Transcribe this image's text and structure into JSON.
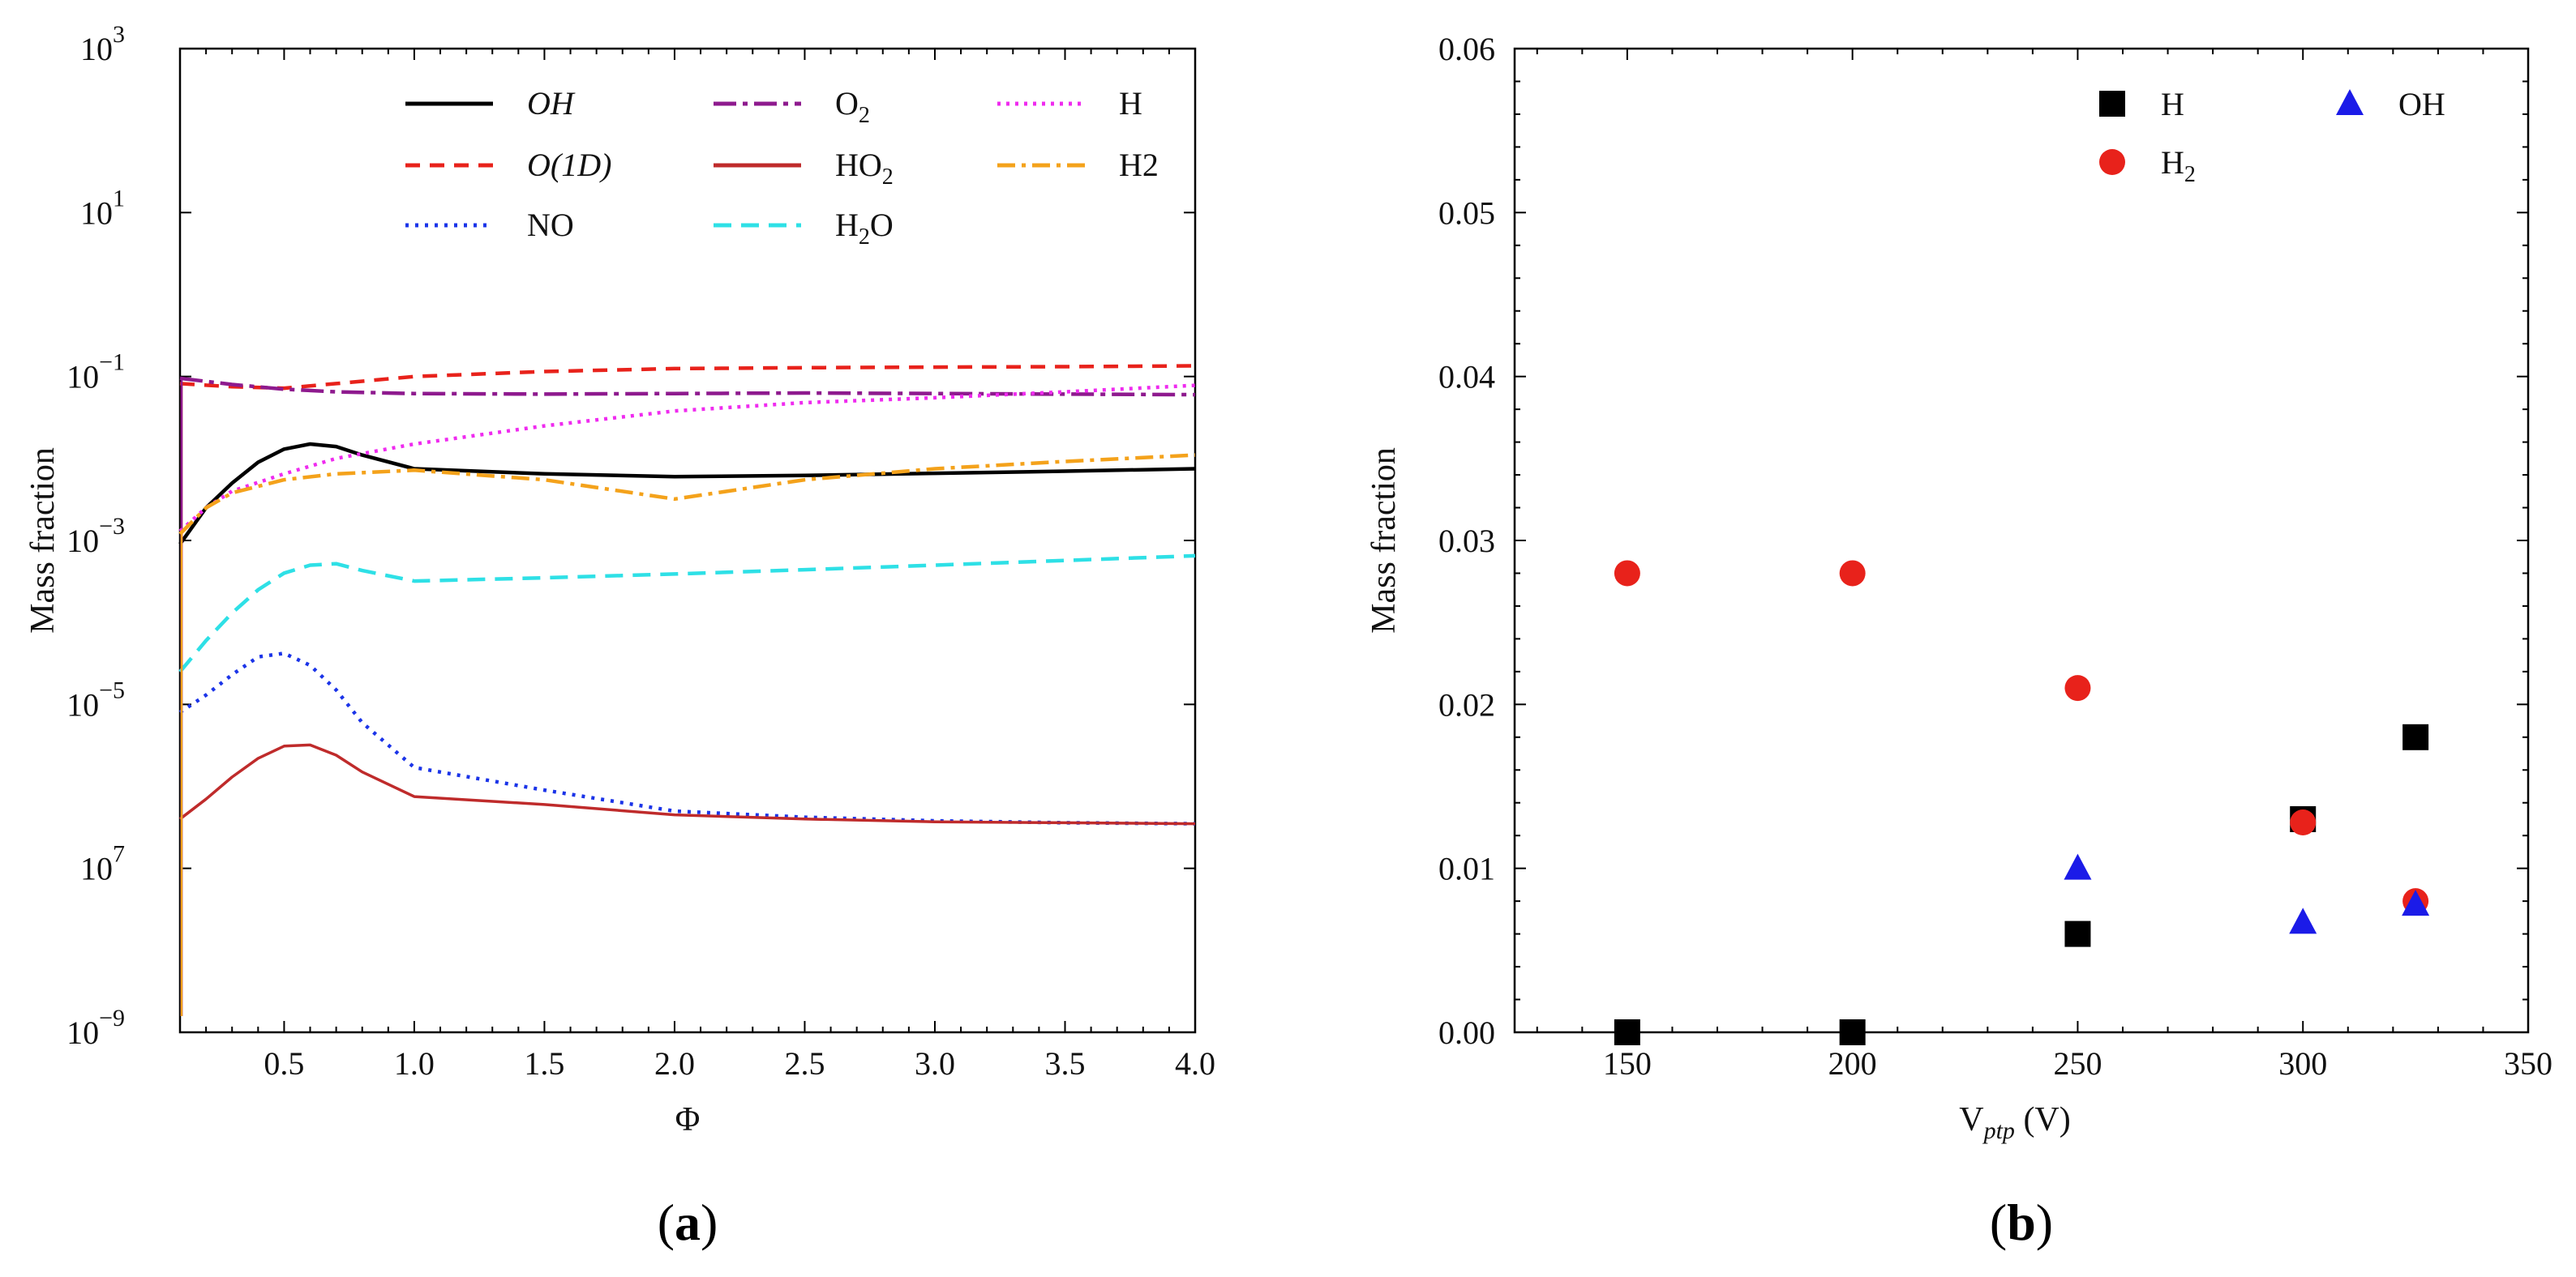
{
  "chart_data": [
    {
      "panel": "a",
      "panel_label": "a",
      "type": "line",
      "xlabel": "Φ",
      "ylabel": "Mass fraction",
      "yscale": "log",
      "xlim": [
        0.1,
        4.0
      ],
      "ylim_exp": [
        -9,
        3
      ],
      "xticks": [
        "0.5",
        "1.0",
        "1.5",
        "2.0",
        "2.5",
        "3.0",
        "3.5",
        "4.0"
      ],
      "yticks": [
        {
          "base": "10",
          "exp": "3"
        },
        {
          "base": "10",
          "exp": "1"
        },
        {
          "base": "10",
          "exp": "−1"
        },
        {
          "base": "10",
          "exp": "−3"
        },
        {
          "base": "10",
          "exp": "−5"
        },
        {
          "base": "10",
          "exp": "7"
        },
        {
          "base": "10",
          "exp": "−9"
        }
      ],
      "legend_position": "top",
      "series": [
        {
          "name": "OH",
          "name_style": "italic",
          "color": "#000000",
          "dash": "solid",
          "x": [
            0.1,
            0.2,
            0.3,
            0.4,
            0.5,
            0.6,
            0.7,
            0.8,
            1.0,
            1.5,
            2.0,
            2.5,
            3.0,
            3.5,
            4.0
          ],
          "y": [
            0.0009,
            0.0025,
            0.005,
            0.009,
            0.013,
            0.015,
            0.014,
            0.011,
            0.0075,
            0.0065,
            0.006,
            0.0062,
            0.0066,
            0.007,
            0.0075
          ]
        },
        {
          "name": "O(1D)",
          "name_style": "italic",
          "color": "#e8221b",
          "dash": "18 12",
          "x": [
            0.1,
            0.3,
            0.5,
            0.7,
            1.0,
            1.5,
            2.0,
            2.5,
            3.0,
            3.5,
            4.0
          ],
          "y": [
            0.082,
            0.075,
            0.072,
            0.082,
            0.1,
            0.115,
            0.125,
            0.128,
            0.13,
            0.132,
            0.135
          ]
        },
        {
          "name": "NO",
          "name_style": "normal",
          "color": "#1b34e8",
          "dash": "4 8",
          "x": [
            0.1,
            0.2,
            0.3,
            0.4,
            0.5,
            0.6,
            0.7,
            0.8,
            1.0,
            1.5,
            2.0,
            2.5,
            3.0,
            3.5,
            4.0
          ],
          "y": [
            8e-06,
            1.3e-05,
            2.3e-05,
            3.8e-05,
            4.2e-05,
            3e-05,
            1.5e-05,
            6e-06,
            1.7e-06,
            9e-07,
            5e-07,
            4.2e-07,
            3.8e-07,
            3.6e-07,
            3.5e-07
          ]
        },
        {
          "name": "O2",
          "name_sub": "2",
          "name_base": "O",
          "color": "#8e1a8e",
          "dash": "28 8 6 8",
          "x": [
            0.1,
            0.3,
            0.5,
            0.7,
            1.0,
            1.5,
            2.0,
            2.5,
            3.0,
            3.5,
            4.0
          ],
          "y": [
            0.095,
            0.08,
            0.07,
            0.065,
            0.062,
            0.061,
            0.062,
            0.063,
            0.062,
            0.061,
            0.06
          ]
        },
        {
          "name": "HO2",
          "name_sub": "2",
          "name_base": "HO",
          "color": "#bf2b2b",
          "dash": "solid",
          "thin": true,
          "x": [
            0.1,
            0.2,
            0.3,
            0.4,
            0.5,
            0.6,
            0.7,
            0.8,
            1.0,
            1.5,
            2.0,
            2.5,
            3.0,
            3.5,
            4.0
          ],
          "y": [
            4e-07,
            7e-07,
            1.3e-06,
            2.2e-06,
            3.1e-06,
            3.2e-06,
            2.4e-06,
            1.5e-06,
            7.5e-07,
            6e-07,
            4.5e-07,
            4e-07,
            3.7e-07,
            3.6e-07,
            3.5e-07
          ]
        },
        {
          "name": "H2O",
          "name_sub": "2",
          "name_base": "H",
          "name_tail": "O",
          "color": "#2ee0e6",
          "dash": "22 12",
          "x": [
            0.1,
            0.2,
            0.3,
            0.4,
            0.5,
            0.6,
            0.7,
            0.8,
            1.0,
            1.5,
            2.0,
            2.5,
            3.0,
            3.5,
            4.0
          ],
          "y": [
            2.5e-05,
            6e-05,
            0.00013,
            0.00025,
            0.0004,
            0.0005,
            0.00052,
            0.00043,
            0.00032,
            0.00035,
            0.00039,
            0.00044,
            0.0005,
            0.00057,
            0.00065
          ]
        },
        {
          "name": "H",
          "name_style": "normal",
          "color": "#ef2bef",
          "dash": "4 7",
          "x": [
            0.1,
            0.2,
            0.3,
            0.5,
            0.7,
            1.0,
            1.5,
            2.0,
            2.5,
            3.0,
            3.5,
            4.0
          ],
          "y": [
            0.0013,
            0.0025,
            0.004,
            0.0065,
            0.01,
            0.015,
            0.025,
            0.038,
            0.048,
            0.055,
            0.065,
            0.078
          ]
        },
        {
          "name": "H2",
          "name_style": "normal",
          "color": "#f4a21b",
          "dash": "22 8 5 8",
          "x": [
            0.1,
            0.2,
            0.3,
            0.5,
            0.7,
            1.0,
            1.5,
            2.0,
            2.5,
            3.0,
            3.5,
            4.0
          ],
          "y": [
            0.0012,
            0.0025,
            0.0038,
            0.0055,
            0.0065,
            0.0072,
            0.0055,
            0.0032,
            0.0055,
            0.0075,
            0.0092,
            0.011
          ]
        }
      ]
    },
    {
      "panel": "b",
      "panel_label": "b",
      "type": "scatter",
      "xlabel": "V",
      "xlabel_sub": "ptp",
      "xlabel_tail": " (V)",
      "ylabel": "Mass fraction",
      "xlim": [
        125,
        350
      ],
      "ylim": [
        0,
        0.06
      ],
      "xticks": [
        "150",
        "200",
        "250",
        "300",
        "350"
      ],
      "yticks": [
        "0.00",
        "0.01",
        "0.02",
        "0.03",
        "0.04",
        "0.05",
        "0.06"
      ],
      "legend_position": "top-right",
      "series": [
        {
          "name": "H",
          "marker": "square",
          "color": "#000000",
          "x": [
            150,
            200,
            250,
            300,
            325
          ],
          "y": [
            0.0,
            0.0,
            0.006,
            0.013,
            0.018
          ]
        },
        {
          "name": "H2",
          "name_base": "H",
          "name_sub": "2",
          "marker": "circle",
          "color": "#e8221b",
          "x": [
            150,
            200,
            250,
            300,
            325
          ],
          "y": [
            0.028,
            0.028,
            0.021,
            0.0128,
            0.008
          ]
        },
        {
          "name": "OH",
          "marker": "triangle",
          "color": "#1b1be8",
          "x": [
            250,
            300,
            325
          ],
          "y": [
            0.01,
            0.0067,
            0.0078
          ]
        }
      ]
    }
  ]
}
